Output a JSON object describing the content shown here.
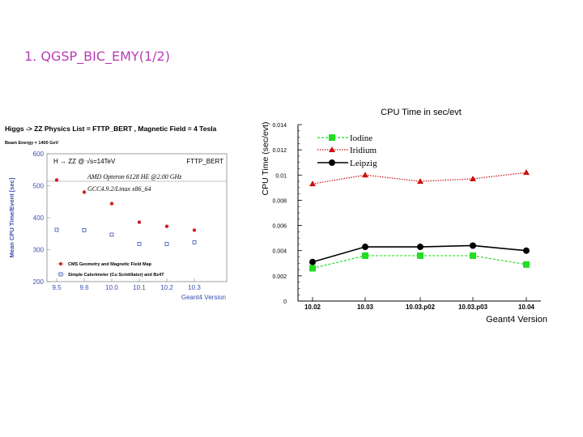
{
  "slide": {
    "title": "1. QGSP_BIC_EMY(1/2)"
  },
  "chart_data": [
    {
      "type": "scatter",
      "title": "Higgs -> ZZ Physics List = FTTP_BERT , Magnetic Field = 4 Tesla",
      "subtitle": "Beam Energy = 1400 GeV",
      "process_label": "H → ZZ @ √s=14TeV",
      "physics_tag": "FTTP_BERT",
      "notes": [
        "AMD Opteron 6128 HE @2.00 GHz",
        "GCC4.9.2/Linux x86_64"
      ],
      "xlabel": "Geant4 Version",
      "ylabel": "Mean CPU Time/Event [sec]",
      "categories": [
        "9.5",
        "9.6",
        "10.0",
        "10.1",
        "10.2",
        "10.3"
      ],
      "ylim": [
        200,
        600
      ],
      "yticks": [
        "200",
        "300",
        "400",
        "500",
        "600"
      ],
      "series": [
        {
          "name": "CMS Geometry and Magnetic Field Map",
          "color": "#d42020",
          "marker": "dot",
          "values": [
            518,
            480,
            444,
            386,
            373,
            361
          ]
        },
        {
          "name": "Simple Calorimeter (Cu Scintillator) and Bz4T",
          "color": "#3b4fb0",
          "marker": "open-square",
          "values": [
            362,
            361,
            347,
            318,
            318,
            323
          ]
        }
      ],
      "legend_position": "bottom"
    },
    {
      "type": "line",
      "title": "CPU Time in sec/evt",
      "xlabel": "Geant4 Version",
      "ylabel": "CPU Time (sec/evt)",
      "categories": [
        "10.02",
        "10.03",
        "10.03.p02",
        "10.03.p03",
        "10.04"
      ],
      "ylim": [
        0,
        0.014
      ],
      "yticks": [
        "0",
        "0.002",
        "0.004",
        "0.006",
        "0.008",
        "0.01",
        "0.012",
        "0.014"
      ],
      "series": [
        {
          "name": "Iodine",
          "color": "#22dd22",
          "marker": "square",
          "values": [
            0.0026,
            0.0036,
            0.0036,
            0.0036,
            0.0029
          ]
        },
        {
          "name": "Iridium",
          "color": "#cc1111",
          "marker": "triangle",
          "values": [
            0.0093,
            0.01,
            0.0095,
            0.0097,
            0.0102
          ]
        },
        {
          "name": "Leipzig",
          "color": "#000000",
          "marker": "dot",
          "values": [
            0.0031,
            0.0043,
            0.0043,
            0.0044,
            0.004
          ]
        }
      ],
      "legend_position": "top-left"
    }
  ]
}
